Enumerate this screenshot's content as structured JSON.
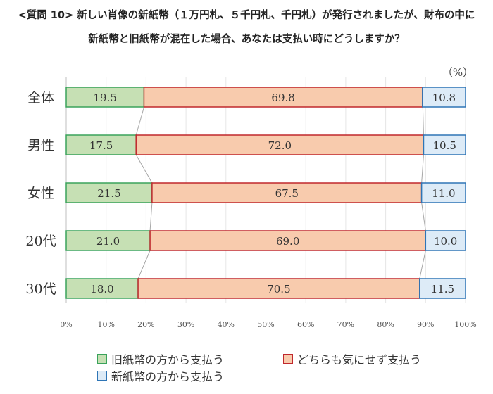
{
  "title_line1": "<質問 10> 新しい肖像の新紙幣（１万円札、５千円札、千円札）が発行されましたが、財布の中に",
  "title_line2": "新紙幣と旧紙幣が混在した場合、あなたは支払い時にどうしますか？",
  "chart_data": {
    "type": "bar",
    "orientation": "horizontal",
    "stacked": "100%",
    "unit_label": "（%）",
    "categories": [
      "全体",
      "男性",
      "女性",
      "20代",
      "30代"
    ],
    "series": [
      {
        "name": "旧紙幣の方から支払う",
        "values": [
          19.5,
          17.5,
          21.5,
          21.0,
          18.0
        ],
        "color": "#c6e0b4",
        "border": "#3aa35b"
      },
      {
        "name": "どちらも気にせず支払う",
        "values": [
          69.8,
          72.0,
          67.5,
          69.0,
          70.5
        ],
        "color": "#f8cbad",
        "border": "#c0282d"
      },
      {
        "name": "新紙幣の方から支払う",
        "values": [
          10.8,
          10.5,
          11.0,
          10.0,
          11.5
        ],
        "color": "#ddebf7",
        "border": "#2e75b6"
      }
    ],
    "xticks": [
      "0%",
      "10%",
      "20%",
      "30%",
      "40%",
      "50%",
      "60%",
      "70%",
      "80%",
      "90%",
      "100%"
    ],
    "xlim": [
      0,
      100
    ],
    "grid": true,
    "series_lines": true,
    "legend": "bottom"
  }
}
